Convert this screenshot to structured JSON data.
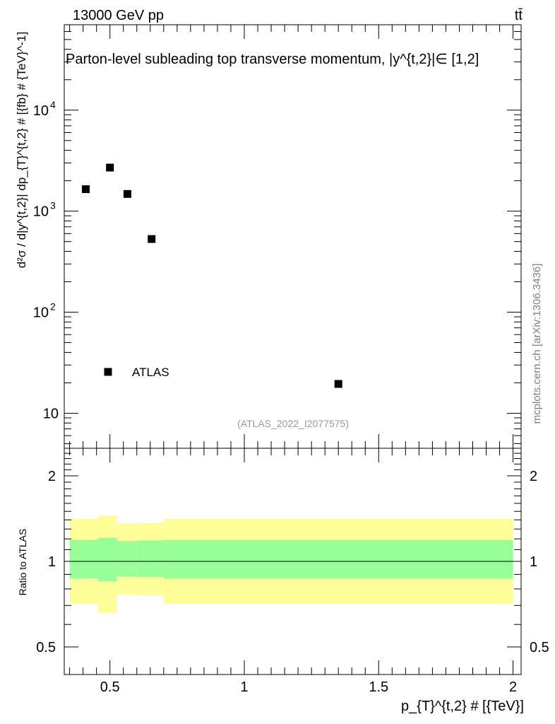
{
  "header": {
    "energy_label": "13000 GeV pp",
    "process_label": "tt̄"
  },
  "side_label": "mcplots.cern.ch [arXiv:1306.3436]",
  "ref_label": "(ATLAS_2022_I2077575)",
  "chart_data": [
    {
      "type": "scatter",
      "title": "Parton-level subleading top transverse momentum, |y^{t,2}|∈ [1,2]",
      "xlabel": "p_{T}^{t,2} # [{TeV}]",
      "ylabel": "d²σ / d|y^{t,2}| dp_{T}^{t,2} # [{fb} # {TeV}^-1]",
      "yscale": "log",
      "xlim": [
        0.33,
        2.03
      ],
      "ylim": [
        4.5,
        70000
      ],
      "ytick_labels": [
        "10",
        "10^2",
        "10^3",
        "10^4"
      ],
      "legend": {
        "entries": [
          "ATLAS"
        ],
        "position": "bottom-left"
      },
      "series": [
        {
          "name": "ATLAS",
          "color": "#000000",
          "x": [
            0.41,
            0.5,
            0.565,
            0.655,
            1.35
          ],
          "y": [
            1650,
            2700,
            1480,
            530,
            19.5
          ]
        }
      ]
    },
    {
      "type": "area",
      "ylabel": "Ratio to ATLAS",
      "yscale": "log",
      "ylim": [
        0.4,
        2.5
      ],
      "ytick_labels": [
        "0.5",
        "1",
        "2"
      ],
      "xtick_labels": [
        "0.5",
        "1",
        "1.5",
        "2"
      ],
      "reference_line": 1.0,
      "colors": {
        "inner_band": "#99ff99",
        "outer_band": "#ffff99"
      },
      "bands": [
        {
          "x_low": 0.35,
          "x_high": 0.455,
          "inner": [
            0.87,
            1.19
          ],
          "outer": [
            0.71,
            1.41
          ]
        },
        {
          "x_low": 0.455,
          "x_high": 0.525,
          "inner": [
            0.85,
            1.21
          ],
          "outer": [
            0.66,
            1.45
          ]
        },
        {
          "x_low": 0.525,
          "x_high": 0.6,
          "inner": [
            0.885,
            1.18
          ],
          "outer": [
            0.765,
            1.36
          ]
        },
        {
          "x_low": 0.6,
          "x_high": 0.7,
          "inner": [
            0.88,
            1.185
          ],
          "outer": [
            0.76,
            1.365
          ]
        },
        {
          "x_low": 0.7,
          "x_high": 2.0,
          "inner": [
            0.87,
            1.19
          ],
          "outer": [
            0.71,
            1.41
          ]
        }
      ]
    }
  ]
}
